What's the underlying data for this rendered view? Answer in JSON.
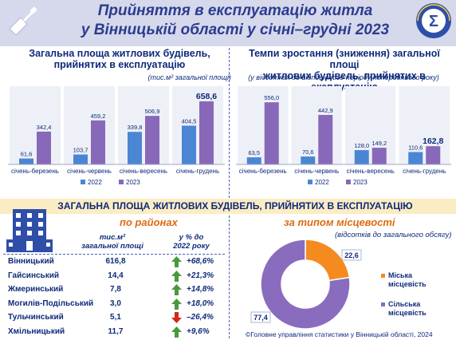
{
  "header": {
    "title_line1": "Прийняття в експлуатацію житла",
    "title_line2": "у Вінницькій області у січні–грудні 2023",
    "logo_letters": "ДЕРЖСТАТ УКРАЇНИ"
  },
  "left_chart": {
    "title_line1": "Загальна площа житлових будівель,",
    "title_line2": "прийнятих в експлуатацію",
    "unit": "(тис.м² загальної площі)"
  },
  "right_chart": {
    "title_line1": "Темпи зростання (зниження) загальної площі",
    "title_line2": "житлових будівель, прийнятих в експлуатацію",
    "unit": "(у відсотках до відповідного періоду попереднього року)"
  },
  "bottom": {
    "section_title": "ЗАГАЛЬНА ПЛОЩА ЖИТЛОВИХ БУДІВЕЛЬ, ПРИЙНЯТИХ В ЕКСПЛУАТАЦІЮ",
    "by_district_title": "по районах",
    "by_locality_title": "за типом місцевості",
    "locality_note": "(відсотків до загального обсягу)",
    "col_area_line1": "тис.м²",
    "col_area_line2": "загальної площі",
    "col_pct_line1": "у % до",
    "col_pct_line2": "2022 року",
    "districts": [
      {
        "name": "Вінницький",
        "value": "616,8",
        "pct": "+68,6%",
        "trend": "up"
      },
      {
        "name": "Гайсинський",
        "value": "14,4",
        "pct": "+21,3%",
        "trend": "up"
      },
      {
        "name": "Жмеринський",
        "value": "7,8",
        "pct": "+14,8%",
        "trend": "up"
      },
      {
        "name": "Могилів-Подільський",
        "value": "3,0",
        "pct": "+18,0%",
        "trend": "up"
      },
      {
        "name": "Тульчинський",
        "value": "5,1",
        "pct": "–26,4%",
        "trend": "down"
      },
      {
        "name": "Хмільницький",
        "value": "11,7",
        "pct": "+9,6%",
        "trend": "up"
      }
    ],
    "footer": "©Головне управління статистики у Вінницькій області, 2024"
  },
  "colors": {
    "s2022": "#4a86d4",
    "s2023": "#8868b8",
    "urban": "#f58a1f",
    "rural": "#8a6cbf",
    "up": "#4a9a3c",
    "down": "#d62718",
    "text_dark": "#0e2a7a"
  },
  "chart_data": [
    {
      "type": "bar",
      "title": "Загальна площа житлових будівель, прийнятих в експлуатацію",
      "ylabel": "тис.м² загальної площі",
      "categories": [
        "січень-березень",
        "січень-червень",
        "січень-вересень",
        "січень-грудень"
      ],
      "series": [
        {
          "name": "2022",
          "values": [
            61.6,
            103.7,
            339.8,
            404.5
          ],
          "labels": [
            "61,6",
            "103,7",
            "339,8",
            "404,5"
          ]
        },
        {
          "name": "2023",
          "values": [
            342.4,
            459.2,
            506.9,
            658.6
          ],
          "labels": [
            "342,4",
            "459,2",
            "506,9",
            "658,6"
          ]
        }
      ],
      "ylim": [
        0,
        700
      ],
      "grid": false,
      "legend": "bottom"
    },
    {
      "type": "bar",
      "title": "Темпи зростання (зниження) загальної площі житлових будівель, прийнятих в експлуатацію",
      "ylabel": "у відсотках до відповідного періоду попереднього року",
      "categories": [
        "січень-березень",
        "січень-червень",
        "січень-вересень",
        "січень-грудень"
      ],
      "series": [
        {
          "name": "2022",
          "values": [
            63.5,
            70.6,
            128.0,
            110.6
          ],
          "labels": [
            "63,5",
            "70,6",
            "128,0",
            "110,6"
          ]
        },
        {
          "name": "2023",
          "values": [
            556.0,
            442.9,
            149.2,
            162.8
          ],
          "labels": [
            "556,0",
            "442,9",
            "149,2",
            "162,8"
          ]
        }
      ],
      "ylim": [
        0,
        600
      ],
      "grid": false,
      "legend": "bottom"
    },
    {
      "type": "pie",
      "title": "за типом місцевості",
      "categories": [
        "Міська місцевість",
        "Сільська місцевість"
      ],
      "values": [
        22.6,
        77.4
      ],
      "labels": [
        "22,6",
        "77,4"
      ]
    }
  ]
}
